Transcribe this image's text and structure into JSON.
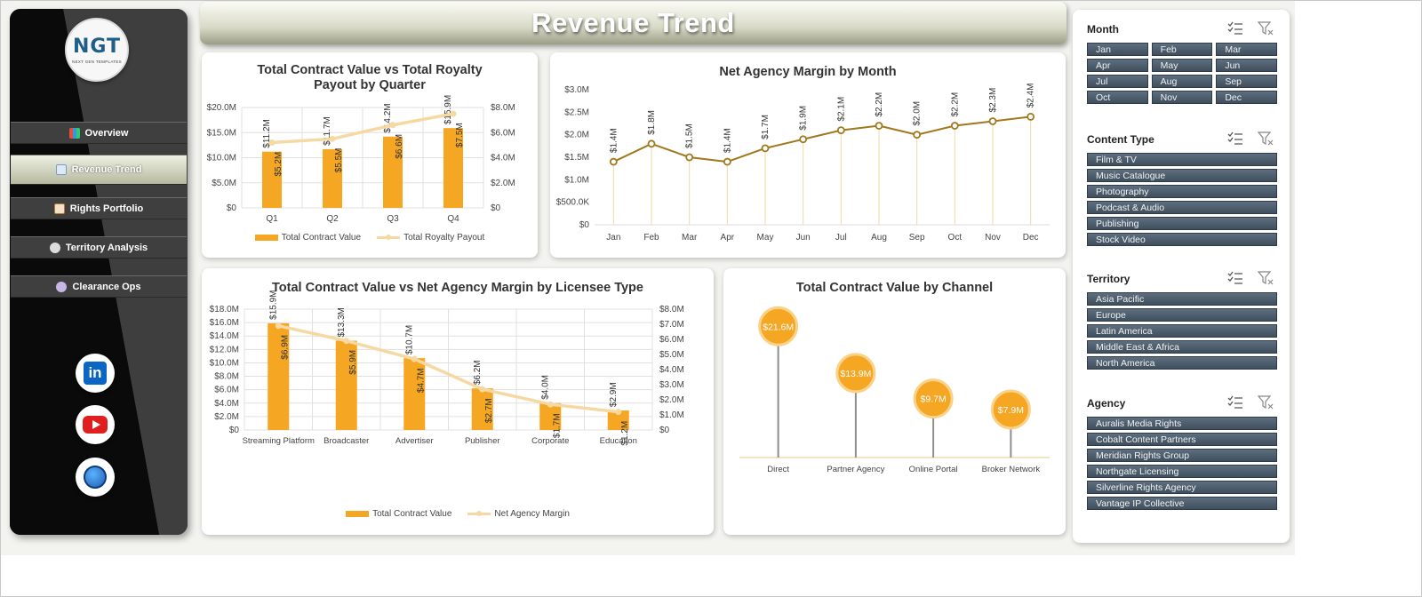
{
  "app": {
    "title": "Revenue Trend"
  },
  "logo": {
    "text": "NGT",
    "subtext": "NEXT GEN TEMPLATES"
  },
  "nav": {
    "items": [
      {
        "label": "Overview",
        "icon": "overview-icon"
      },
      {
        "label": "Revenue Trend",
        "icon": "chart-icon"
      },
      {
        "label": "Rights Portfolio",
        "icon": "document-icon"
      },
      {
        "label": "Territory Analysis",
        "icon": "map-icon"
      },
      {
        "label": "Clearance Ops",
        "icon": "gear-icon"
      }
    ],
    "active": "Revenue Trend"
  },
  "social": {
    "icons": [
      "linkedin-icon",
      "youtube-icon",
      "globe-icon"
    ],
    "linkedin_letters": "in"
  },
  "colors": {
    "bar": "#f5a623",
    "line_light": "#f6d9a2",
    "line_dark": "#a0781e",
    "slicer": "#4a5a6a"
  },
  "chart_data": [
    {
      "id": "quarter",
      "type": "bar",
      "title": "Total Contract Value vs Total Royalty Payout by Quarter",
      "categories": [
        "Q1",
        "Q2",
        "Q3",
        "Q4"
      ],
      "series": [
        {
          "name": "Total Contract Value",
          "kind": "bar",
          "axis": "left",
          "values": [
            11.2,
            11.7,
            14.2,
            15.9
          ],
          "labels": [
            "$11.2M",
            "$11.7M",
            "$14.2M",
            "$15.9M"
          ]
        },
        {
          "name": "Total Royalty Payout",
          "kind": "line",
          "axis": "right",
          "values": [
            5.2,
            5.5,
            6.6,
            7.5
          ],
          "labels": [
            "$5.2M",
            "$5.5M",
            "$6.6M",
            "$7.5M"
          ]
        }
      ],
      "yleft": {
        "ticks": [
          "$0",
          "$5.0M",
          "$10.0M",
          "$15.0M",
          "$20.0M"
        ],
        "range": [
          0,
          20
        ]
      },
      "yright": {
        "ticks": [
          "$0",
          "$2.0M",
          "$4.0M",
          "$6.0M",
          "$8.0M"
        ],
        "range": [
          0,
          8
        ]
      },
      "grid": true,
      "legend": "bottom"
    },
    {
      "id": "month",
      "type": "line",
      "title": "Net Agency Margin by Month",
      "categories": [
        "Jan",
        "Feb",
        "Mar",
        "Apr",
        "May",
        "Jun",
        "Jul",
        "Aug",
        "Sep",
        "Oct",
        "Nov",
        "Dec"
      ],
      "values": [
        1.4,
        1.8,
        1.5,
        1.4,
        1.7,
        1.9,
        2.1,
        2.2,
        2.0,
        2.2,
        2.3,
        2.4
      ],
      "labels": [
        "$1.4M",
        "$1.8M",
        "$1.5M",
        "$1.4M",
        "$1.7M",
        "$1.9M",
        "$2.1M",
        "$2.2M",
        "$2.0M",
        "$2.2M",
        "$2.3M",
        "$2.4M"
      ],
      "ylim": [
        0,
        3
      ],
      "yticks": [
        "$0",
        "$500.0K",
        "$1.0M",
        "$1.5M",
        "$2.0M",
        "$2.5M",
        "$3.0M"
      ],
      "grid": true
    },
    {
      "id": "licensee",
      "type": "bar",
      "title": "Total Contract Value vs Net Agency Margin by Licensee Type",
      "categories": [
        "Streaming Platform",
        "Broadcaster",
        "Advertiser",
        "Publisher",
        "Corporate",
        "Education"
      ],
      "series": [
        {
          "name": "Total Contract Value",
          "kind": "bar",
          "axis": "left",
          "values": [
            15.9,
            13.3,
            10.7,
            6.2,
            4.0,
            2.9
          ],
          "labels": [
            "$15.9M",
            "$13.3M",
            "$10.7M",
            "$6.2M",
            "$4.0M",
            "$2.9M"
          ]
        },
        {
          "name": "Net Agency Margin",
          "kind": "line",
          "axis": "right",
          "values": [
            6.9,
            5.9,
            4.7,
            2.7,
            1.7,
            1.2
          ],
          "labels": [
            "$6.9M",
            "$5.9M",
            "$4.7M",
            "$2.7M",
            "$1.7M",
            "$1.2M"
          ]
        }
      ],
      "yleft": {
        "ticks": [
          "$0",
          "$2.0M",
          "$4.0M",
          "$6.0M",
          "$8.0M",
          "$10.0M",
          "$12.0M",
          "$14.0M",
          "$16.0M",
          "$18.0M"
        ],
        "range": [
          0,
          18
        ]
      },
      "yright": {
        "ticks": [
          "$0",
          "$1.0M",
          "$2.0M",
          "$3.0M",
          "$4.0M",
          "$5.0M",
          "$6.0M",
          "$7.0M",
          "$8.0M"
        ],
        "range": [
          0,
          8
        ]
      },
      "grid": true,
      "legend": "bottom"
    },
    {
      "id": "channel",
      "type": "scatter",
      "title": "Total Contract Value by Channel",
      "categories": [
        "Direct",
        "Partner Agency",
        "Online Portal",
        "Broker Network"
      ],
      "values": [
        21.6,
        13.9,
        9.7,
        7.9
      ],
      "labels": [
        "$21.6M",
        "$13.9M",
        "$9.7M",
        "$7.9M"
      ],
      "ylim": [
        0,
        25
      ]
    }
  ],
  "slicers": [
    {
      "title": "Month",
      "columns": 3,
      "items": [
        "Jan",
        "Feb",
        "Mar",
        "Apr",
        "May",
        "Jun",
        "Jul",
        "Aug",
        "Sep",
        "Oct",
        "Nov",
        "Dec"
      ]
    },
    {
      "title": "Content Type",
      "columns": 1,
      "items": [
        "Film & TV",
        "Music Catalogue",
        "Photography",
        "Podcast & Audio",
        "Publishing",
        "Stock Video"
      ]
    },
    {
      "title": "Territory",
      "columns": 1,
      "items": [
        "Asia Pacific",
        "Europe",
        "Latin America",
        "Middle East & Africa",
        "North America"
      ]
    },
    {
      "title": "Agency",
      "columns": 1,
      "items": [
        "Auralis Media Rights",
        "Cobalt Content Partners",
        "Meridian Rights Group",
        "Northgate Licensing",
        "Silverline Rights Agency",
        "Vantage IP Collective"
      ]
    }
  ]
}
